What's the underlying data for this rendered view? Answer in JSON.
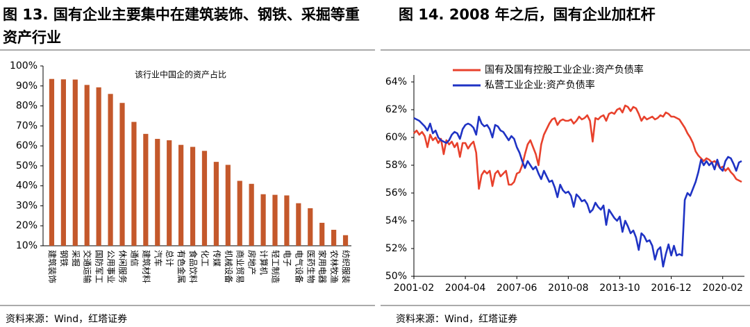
{
  "chart_data": [
    {
      "type": "bar",
      "title": "图 13. 国有企业主要集中在建筑装饰、钢铁、采掘等重资产行业",
      "annotation": "该行业中国企的资产占比",
      "source": "资料来源：Wind，红塔证券",
      "categories": [
        "建筑装饰",
        "钢铁",
        "采掘",
        "交通运输",
        "国防军工",
        "公用事业",
        "休闲服务",
        "通信",
        "建筑材料",
        "汽车",
        "总计",
        "有色金属",
        "食品饮料",
        "化工",
        "传媒",
        "机械设备",
        "商业贸易",
        "房地产",
        "计算机",
        "轻工制造",
        "电子",
        "电气设备",
        "医药生物",
        "家用电器",
        "农林牧渔",
        "纺织服装"
      ],
      "values": [
        93.5,
        93.3,
        93.2,
        90.5,
        89.3,
        86,
        81.5,
        72,
        66,
        63.5,
        62.8,
        60.5,
        59.5,
        57.5,
        52,
        50.5,
        42.5,
        41,
        35.8,
        35.5,
        35.2,
        31.3,
        28.8,
        21.5,
        18,
        15.3
      ],
      "color": "#c4582b",
      "ylim": [
        10,
        100
      ],
      "yticks": [
        {
          "value": 10,
          "label": "10%"
        },
        {
          "value": 20,
          "label": "20%"
        },
        {
          "value": 30,
          "label": "30%"
        },
        {
          "value": 40,
          "label": "40%"
        },
        {
          "value": 50,
          "label": "50%"
        },
        {
          "value": 60,
          "label": "60%"
        },
        {
          "value": 70,
          "label": "70%"
        },
        {
          "value": 80,
          "label": "80%"
        },
        {
          "value": 90,
          "label": "90%"
        },
        {
          "value": 100,
          "label": "100%"
        }
      ]
    },
    {
      "type": "line",
      "title": "图 14. 2008 年之后，国有企业加杠杆",
      "source": "资料来源：Wind，红塔证券",
      "categories": [
        "2001-02",
        "2001-04",
        "2001-06",
        "2001-08",
        "2001-10",
        "2001-12",
        "2002-02",
        "2002-04",
        "2002-06",
        "2002-08",
        "2002-10",
        "2002-12",
        "2003-02",
        "2003-04",
        "2003-06",
        "2003-08",
        "2003-10",
        "2003-12",
        "2004-02",
        "2004-04",
        "2004-06",
        "2004-08",
        "2004-10",
        "2004-12",
        "2005-02",
        "2005-04",
        "2005-06",
        "2005-08",
        "2005-10",
        "2005-12",
        "2006-02",
        "2006-04",
        "2006-06",
        "2006-08",
        "2006-10",
        "2006-12",
        "2007-02",
        "2007-04",
        "2007-06",
        "2007-08",
        "2007-10",
        "2007-12",
        "2008-02",
        "2008-04",
        "2008-06",
        "2008-08",
        "2008-10",
        "2008-12",
        "2009-02",
        "2009-04",
        "2009-06",
        "2009-08",
        "2009-10",
        "2009-12",
        "2010-02",
        "2010-04",
        "2010-06",
        "2010-08",
        "2010-10",
        "2010-12",
        "2011-02",
        "2011-04",
        "2011-06",
        "2011-08",
        "2011-10",
        "2011-12",
        "2012-02",
        "2012-04",
        "2012-06",
        "2012-08",
        "2012-10",
        "2012-12",
        "2013-02",
        "2013-04",
        "2013-06",
        "2013-08",
        "2013-10",
        "2013-12",
        "2014-02",
        "2014-04",
        "2014-06",
        "2014-08",
        "2014-10",
        "2014-12",
        "2015-02",
        "2015-04",
        "2015-06",
        "2015-08",
        "2015-10",
        "2015-12",
        "2016-02",
        "2016-04",
        "2016-06",
        "2016-08",
        "2016-10",
        "2016-12",
        "2017-02",
        "2017-04",
        "2017-06",
        "2017-08",
        "2017-10",
        "2017-12",
        "2018-02",
        "2018-04",
        "2018-06",
        "2018-08",
        "2018-10",
        "2018-12",
        "2019-02",
        "2019-04",
        "2019-06",
        "2019-08",
        "2019-10",
        "2019-12",
        "2020-02",
        "2020-04",
        "2020-06",
        "2020-08",
        "2020-10",
        "2020-12",
        "2021-02",
        "2021-04"
      ],
      "xticks": [
        "2001-02",
        "2004-04",
        "2007-06",
        "2010-08",
        "2013-10",
        "2016-12",
        "2020-02"
      ],
      "series": [
        {
          "name": "国有及国有控股工业企业:资产负债率",
          "color": "#e8412c",
          "values": [
            60.3,
            60.5,
            60.2,
            60.4,
            60.1,
            59.3,
            60.2,
            59.8,
            60.0,
            59.6,
            59.9,
            58.8,
            59.8,
            59.5,
            59.7,
            59.3,
            59.6,
            58.6,
            59.6,
            59.6,
            59.2,
            59.5,
            59.7,
            58.9,
            56.3,
            57.3,
            57.6,
            57.4,
            57.6,
            56.5,
            57.4,
            57.6,
            57.2,
            57.4,
            57.6,
            56.6,
            56.6,
            56.8,
            57.4,
            57.5,
            58.0,
            58.8,
            59.5,
            59.8,
            59.3,
            58.8,
            58.0,
            59.5,
            60.2,
            60.6,
            61.0,
            61.3,
            61.4,
            60.9,
            61.2,
            61.3,
            61.2,
            61.2,
            61.3,
            61.0,
            61.2,
            61.5,
            61.3,
            61.4,
            61.6,
            61.2,
            59.7,
            61.4,
            61.3,
            61.5,
            61.6,
            61.2,
            61.7,
            61.8,
            61.7,
            62.0,
            62.1,
            61.8,
            62.3,
            62.2,
            61.9,
            62.2,
            62.1,
            61.7,
            61.2,
            61.5,
            61.3,
            61.4,
            61.5,
            61.3,
            61.4,
            61.6,
            61.5,
            61.8,
            61.7,
            61.5,
            61.5,
            61.4,
            61.3,
            61.0,
            60.7,
            60.3,
            60.0,
            59.6,
            59.0,
            58.7,
            58.5,
            58.3,
            58.5,
            58.4,
            58.2,
            58.3,
            58.1,
            57.8,
            57.9,
            57.6,
            57.8,
            57.5,
            57.3,
            57.0,
            56.9,
            56.8
          ]
        },
        {
          "name": "私营工业企业:资产负债率",
          "color": "#1f33c4",
          "values": [
            61.4,
            61.3,
            61.2,
            61.0,
            60.8,
            60.5,
            61.0,
            60.3,
            60.5,
            60.0,
            59.8,
            59.7,
            59.6,
            59.8,
            60.2,
            60.4,
            60.3,
            59.9,
            60.6,
            60.9,
            61.0,
            60.9,
            60.7,
            60.2,
            61.5,
            61.0,
            60.8,
            60.9,
            60.6,
            60.0,
            60.9,
            60.8,
            60.5,
            60.4,
            60.1,
            59.8,
            60.1,
            59.9,
            59.3,
            58.9,
            58.3,
            57.8,
            58.3,
            58.0,
            57.7,
            57.9,
            57.4,
            57.0,
            57.6,
            57.2,
            56.8,
            56.9,
            56.4,
            55.7,
            56.6,
            56.2,
            56.0,
            56.1,
            55.8,
            55.0,
            55.9,
            55.7,
            55.4,
            55.5,
            55.2,
            54.6,
            54.8,
            55.3,
            55.0,
            54.8,
            55.1,
            53.7,
            54.8,
            54.5,
            54.2,
            54.0,
            54.3,
            53.2,
            54.0,
            53.6,
            53.1,
            53.3,
            52.8,
            51.9,
            53.1,
            52.9,
            52.5,
            52.6,
            52.2,
            51.2,
            51.9,
            52.1,
            50.7,
            51.6,
            52.3,
            51.5,
            52.2,
            51.5,
            51.6,
            51.5,
            55.5,
            56.0,
            55.8,
            56.3,
            56.8,
            57.5,
            58.4,
            58.0,
            58.3,
            58.0,
            58.2,
            57.7,
            58.4,
            57.8,
            57.6,
            58.3,
            58.6,
            58.5,
            58.1,
            57.6,
            58.2,
            58.3
          ]
        }
      ],
      "ylim": [
        50,
        64
      ],
      "yticks": [
        {
          "value": 50,
          "label": "50%"
        },
        {
          "value": 52,
          "label": "52%"
        },
        {
          "value": 54,
          "label": "54%"
        },
        {
          "value": 56,
          "label": "56%"
        },
        {
          "value": 58,
          "label": "58%"
        },
        {
          "value": 60,
          "label": "60%"
        },
        {
          "value": 62,
          "label": "62%"
        },
        {
          "value": 64,
          "label": "64%"
        }
      ]
    }
  ]
}
